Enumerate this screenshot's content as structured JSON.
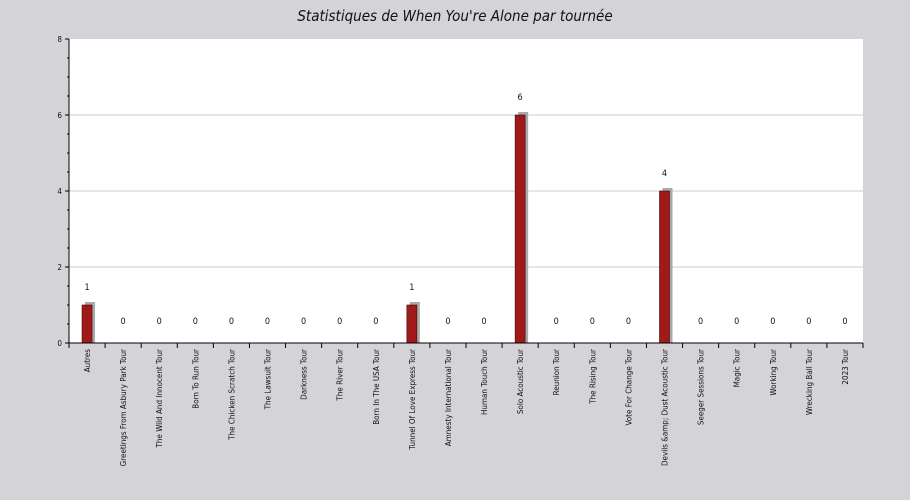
{
  "chart_data": {
    "type": "bar",
    "title": "Statistiques de When You're Alone par tournée",
    "xlabel": "",
    "ylabel": "",
    "ylim": [
      0,
      8
    ],
    "yticks": [
      0,
      2,
      4,
      6,
      8
    ],
    "grid": true,
    "categories": [
      "Autres",
      "Greetings From Asbury Park Tour",
      "The Wild And Innocent Tour",
      "Born To Run Tour",
      "The Chicken Scratch Tour",
      "The Lawsuit Tour",
      "Darkness Tour",
      "The River Tour",
      "Born In The USA Tour",
      "Tunnel Of Love Express Tour",
      "Amnesty International Tour",
      "Human Touch Tour",
      "Solo Acoustic Tour",
      "Reunion Tour",
      "The Rising Tour",
      "Vote For Change Tour",
      "Devils &amp; Dust Acoustic Tour",
      "Seeger Sessions Tour",
      "Magic Tour",
      "Working Tour",
      "Wrecking Ball Tour",
      "2023 Tour"
    ],
    "values": [
      1,
      0,
      0,
      0,
      0,
      0,
      0,
      0,
      0,
      1,
      0,
      0,
      6,
      0,
      0,
      0,
      4,
      0,
      0,
      0,
      0,
      0
    ],
    "bar_color": "#a01a1a",
    "shadow_color": "#aaaaaa"
  }
}
